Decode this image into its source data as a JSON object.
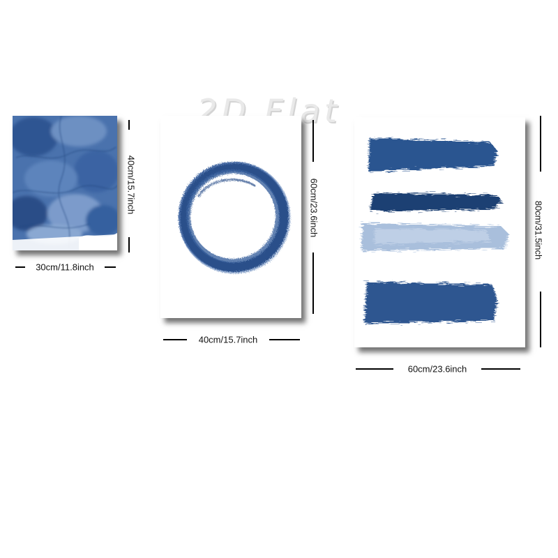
{
  "watermark": "2D Flat",
  "posters": [
    {
      "name": "watercolor-texture",
      "width_label": "30cm/11.8inch",
      "height_label": "40cm/15.7inch"
    },
    {
      "name": "ink-circle",
      "width_label": "40cm/15.7inch",
      "height_label": "60cm/23.6inch"
    },
    {
      "name": "brush-strokes",
      "width_label": "60cm/23.6inch",
      "height_label": "80cm/31.5inch"
    }
  ],
  "colors": {
    "ink_dark": "#1f3f73",
    "ink_mid": "#3f69a6",
    "ink_light": "#a9bfdc",
    "background": "#ffffff"
  }
}
